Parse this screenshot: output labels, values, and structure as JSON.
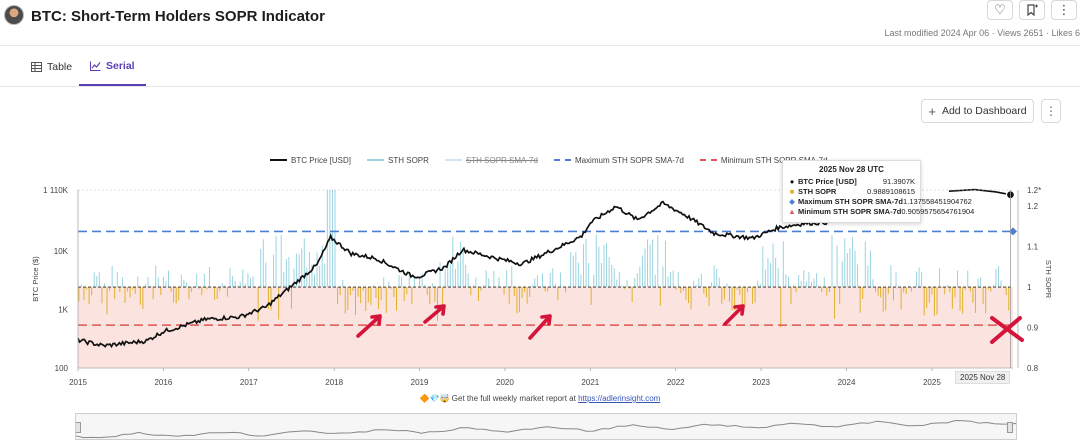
{
  "header": {
    "title": "BTC: Short-Term Holders SOPR Indicator",
    "meta": "Last modified 2024 Apr 06 · Views 2651 · Likes 6",
    "icons": [
      "heart-icon",
      "bookmark-add-icon",
      "more-vertical-icon"
    ]
  },
  "tabs": [
    {
      "label": "Table",
      "icon": "table-icon",
      "active": false
    },
    {
      "label": "Serial",
      "icon": "line-chart-icon",
      "active": true
    }
  ],
  "toolbar": {
    "add_dashboard_label": "Add to Dashboard"
  },
  "legend": {
    "price": "BTC Price [USD]",
    "sopr": "STH SOPR",
    "sma": "STH SOPR SMA-7d",
    "max": "Maximum STH SOPR SMA-7d",
    "min": "Minimum STH SOPR SMA-7d"
  },
  "tooltip": {
    "date": "2025 Nov 28 UTC",
    "rows": [
      {
        "name": "BTC Price [USD]",
        "value": "91.3907K",
        "color": "#000000"
      },
      {
        "name": "STH SOPR",
        "value": "0.9889108615",
        "color": "#e1b12c"
      },
      {
        "name": "Maximum STH SOPR SMA-7d",
        "value": "1.137558451904762",
        "color": "#4a7fd4"
      },
      {
        "name": "Minimum STH SOPR SMA-7d",
        "value": "0.9059575654761904",
        "color": "#e05555"
      }
    ]
  },
  "crosshair_date": "2025 Nov 28",
  "footer": {
    "text": "Get the full weekly market report at",
    "link": "https://adlerinsight.com",
    "emojis": "🔶💎🤯"
  },
  "colors": {
    "price": "#111111",
    "sopr_above": "#9ad4e0",
    "sopr_below": "#e1b12c",
    "max_line": "#4a7fd4",
    "min_line": "#e05555",
    "below_one_band": "#fbe3df",
    "annotation": "#d4143b"
  },
  "chart_data": {
    "type": "line",
    "x_years": [
      "2015",
      "2016",
      "2017",
      "2018",
      "2019",
      "2020",
      "2021",
      "2022",
      "2023",
      "2024",
      "2025"
    ],
    "x_range": [
      2015.0,
      2025.95
    ],
    "left_axis": {
      "label": "BTC Price ($)",
      "scale": "log",
      "ticks": [
        "100",
        "1K",
        "10K",
        "110K"
      ],
      "tick_values": [
        100,
        1000,
        10000,
        110000
      ]
    },
    "right_axis": {
      "label": "STH SOPR",
      "ticks": [
        "0.8",
        "0.9",
        "1",
        "1.1",
        "1.2",
        "1.2*"
      ],
      "tick_values": [
        0.8,
        0.9,
        1.0,
        1.1,
        1.2,
        1.24
      ]
    },
    "series": [
      {
        "name": "BTC Price [USD]",
        "axis": "left",
        "x": [
          2015.0,
          2015.3,
          2015.8,
          2016.0,
          2016.5,
          2016.9,
          2017.2,
          2017.5,
          2017.8,
          2017.96,
          2018.2,
          2018.5,
          2018.9,
          2019.0,
          2019.3,
          2019.5,
          2019.9,
          2020.2,
          2020.6,
          2020.9,
          2021.0,
          2021.3,
          2021.55,
          2021.85,
          2022.1,
          2022.45,
          2022.9,
          2023.2,
          2023.5,
          2023.8
        ],
        "y": [
          300,
          240,
          290,
          420,
          680,
          750,
          1100,
          2500,
          5800,
          17000,
          9000,
          7400,
          3800,
          3700,
          5300,
          10500,
          7500,
          6000,
          11000,
          18000,
          30000,
          58000,
          34000,
          65000,
          42000,
          20000,
          16500,
          25000,
          29500,
          31000
        ]
      },
      {
        "name": "STH SOPR",
        "axis": "right"
      },
      {
        "name": "Maximum STH SOPR SMA-7d",
        "axis": "right",
        "y": [
          1.1376
        ]
      },
      {
        "name": "Minimum STH SOPR SMA-7d",
        "axis": "right",
        "y": [
          0.906
        ]
      }
    ],
    "grid": false,
    "legend_position": "top"
  }
}
